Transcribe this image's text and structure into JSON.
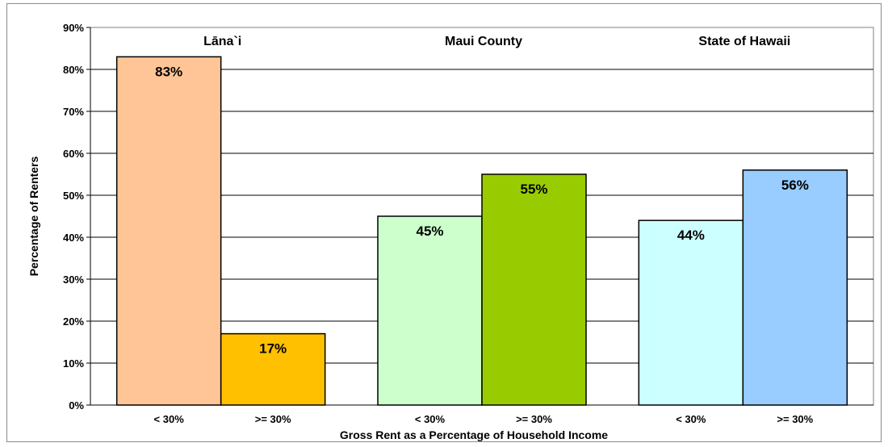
{
  "chart_data": {
    "type": "bar",
    "ylabel": "Percentage of Renters",
    "xlabel": "Gross Rent as a Percentage of Household Income",
    "ylim": [
      0,
      90
    ],
    "yticks": [
      "0%",
      "10%",
      "20%",
      "30%",
      "40%",
      "50%",
      "60%",
      "70%",
      "80%",
      "90%"
    ],
    "grid": true,
    "groups": [
      {
        "name": "Lāna`i",
        "bars": [
          {
            "category": "< 30%",
            "value": 83,
            "label": "83%",
            "color": "#FFC596"
          },
          {
            "category": ">= 30%",
            "value": 17,
            "label": "17%",
            "color": "#FFC000"
          }
        ]
      },
      {
        "name": "Maui County",
        "bars": [
          {
            "category": "< 30%",
            "value": 45,
            "label": "45%",
            "color": "#CCFFCC"
          },
          {
            "category": ">= 30%",
            "value": 55,
            "label": "55%",
            "color": "#99CC00"
          }
        ]
      },
      {
        "name": "State of Hawaii",
        "bars": [
          {
            "category": "< 30%",
            "value": 44,
            "label": "44%",
            "color": "#CCFFFF"
          },
          {
            "category": ">= 30%",
            "value": 56,
            "label": "56%",
            "color": "#99CCFF"
          }
        ]
      }
    ]
  }
}
